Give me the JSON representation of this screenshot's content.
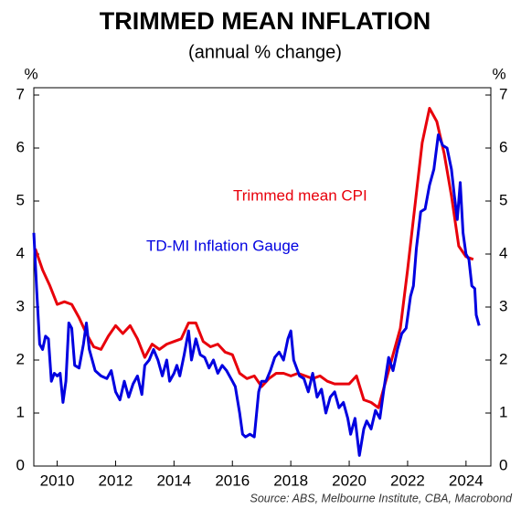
{
  "chart_data": {
    "type": "line",
    "title": "TRIMMED MEAN INFLATION",
    "subtitle": "(annual % change)",
    "y_unit": "%",
    "y2_unit": "%",
    "source": "Source: ABS, Melbourne Institute, CBA, Macrobond",
    "annotations": [
      "Trimmed mean CPI",
      "TD-MI Inflation Gauge"
    ],
    "xlim": [
      2009.2,
      2024.85
    ],
    "xticks": [
      2010,
      2012,
      2014,
      2016,
      2018,
      2020,
      2022,
      2024
    ],
    "ylim": [
      0,
      7
    ],
    "yticks": [
      0,
      1,
      2,
      3,
      4,
      5,
      6,
      7
    ],
    "y2lim": [
      0,
      7
    ],
    "y2ticks": [
      0,
      1,
      2,
      3,
      4,
      5,
      6,
      7
    ],
    "grid": false,
    "series": [
      {
        "name": "Trimmed mean CPI",
        "color": "#e8000b",
        "x": [
          2009.25,
          2009.5,
          2009.75,
          2010,
          2010.25,
          2010.5,
          2010.75,
          2011,
          2011.25,
          2011.5,
          2011.75,
          2012,
          2012.25,
          2012.5,
          2012.75,
          2013,
          2013.25,
          2013.5,
          2013.75,
          2014,
          2014.25,
          2014.5,
          2014.75,
          2015,
          2015.25,
          2015.5,
          2015.75,
          2016,
          2016.25,
          2016.5,
          2016.75,
          2017,
          2017.25,
          2017.5,
          2017.75,
          2018,
          2018.25,
          2018.5,
          2018.75,
          2019,
          2019.25,
          2019.5,
          2019.75,
          2020,
          2020.25,
          2020.5,
          2020.75,
          2021,
          2021.25,
          2021.5,
          2021.75,
          2022,
          2022.25,
          2022.5,
          2022.75,
          2023,
          2023.25,
          2023.5,
          2023.75,
          2024,
          2024.25
        ],
        "values": [
          4.1,
          3.7,
          3.4,
          3.05,
          3.1,
          3.05,
          2.8,
          2.5,
          2.25,
          2.2,
          2.45,
          2.65,
          2.5,
          2.65,
          2.4,
          2.05,
          2.3,
          2.2,
          2.3,
          2.35,
          2.4,
          2.7,
          2.7,
          2.35,
          2.25,
          2.3,
          2.15,
          2.1,
          1.75,
          1.65,
          1.7,
          1.5,
          1.65,
          1.75,
          1.75,
          1.7,
          1.75,
          1.7,
          1.65,
          1.7,
          1.6,
          1.55,
          1.55,
          1.55,
          1.7,
          1.25,
          1.2,
          1.1,
          1.6,
          2.1,
          2.6,
          3.7,
          4.9,
          6.1,
          6.75,
          6.5,
          5.9,
          5.1,
          4.15,
          3.95,
          3.9
        ]
      },
      {
        "name": "TD-MI Inflation Gauge",
        "color": "#0000e0",
        "x": [
          2009.2,
          2009.3,
          2009.4,
          2009.5,
          2009.6,
          2009.7,
          2009.8,
          2009.9,
          2010,
          2010.1,
          2010.2,
          2010.3,
          2010.4,
          2010.5,
          2010.6,
          2010.75,
          2010.9,
          2011,
          2011.1,
          2011.3,
          2011.5,
          2011.7,
          2011.85,
          2012,
          2012.15,
          2012.3,
          2012.45,
          2012.6,
          2012.75,
          2012.9,
          2013,
          2013.15,
          2013.3,
          2013.45,
          2013.6,
          2013.75,
          2013.85,
          2014,
          2014.1,
          2014.2,
          2014.35,
          2014.5,
          2014.6,
          2014.75,
          2014.9,
          2015.05,
          2015.2,
          2015.35,
          2015.5,
          2015.65,
          2015.8,
          2016,
          2016.1,
          2016.25,
          2016.35,
          2016.45,
          2016.6,
          2016.75,
          2016.9,
          2017,
          2017.15,
          2017.3,
          2017.45,
          2017.6,
          2017.75,
          2017.9,
          2018,
          2018.1,
          2018.3,
          2018.45,
          2018.6,
          2018.75,
          2018.9,
          2019.05,
          2019.2,
          2019.35,
          2019.5,
          2019.65,
          2019.8,
          2019.95,
          2020.05,
          2020.2,
          2020.35,
          2020.5,
          2020.6,
          2020.75,
          2020.9,
          2021.05,
          2021.2,
          2021.35,
          2021.5,
          2021.65,
          2021.8,
          2021.95,
          2022.1,
          2022.2,
          2022.3,
          2022.45,
          2022.6,
          2022.75,
          2022.9,
          2023.05,
          2023.2,
          2023.35,
          2023.5,
          2023.6,
          2023.7,
          2023.8,
          2023.9,
          2024,
          2024.1,
          2024.2,
          2024.3,
          2024.35,
          2024.45
        ],
        "values": [
          4.4,
          3.3,
          2.3,
          2.2,
          2.45,
          2.4,
          1.6,
          1.75,
          1.7,
          1.75,
          1.2,
          1.6,
          2.7,
          2.6,
          1.9,
          1.85,
          2.3,
          2.7,
          2.2,
          1.8,
          1.7,
          1.65,
          1.8,
          1.4,
          1.25,
          1.6,
          1.3,
          1.55,
          1.7,
          1.35,
          1.9,
          2.0,
          2.2,
          2.0,
          1.7,
          2.0,
          1.6,
          1.75,
          1.9,
          1.7,
          2.1,
          2.55,
          2.0,
          2.4,
          2.1,
          2.05,
          1.85,
          2.0,
          1.75,
          1.9,
          1.8,
          1.6,
          1.5,
          1.0,
          0.6,
          0.55,
          0.6,
          0.55,
          1.4,
          1.6,
          1.6,
          1.8,
          2.05,
          2.15,
          2.0,
          2.4,
          2.55,
          2.0,
          1.7,
          1.65,
          1.4,
          1.75,
          1.3,
          1.45,
          1.0,
          1.3,
          1.4,
          1.1,
          1.2,
          0.9,
          0.6,
          0.9,
          0.2,
          0.7,
          0.85,
          0.7,
          1.05,
          0.9,
          1.5,
          2.05,
          1.8,
          2.2,
          2.5,
          2.6,
          3.2,
          3.4,
          4.1,
          4.8,
          4.85,
          5.3,
          5.6,
          6.25,
          6.05,
          6.0,
          5.6,
          5.1,
          4.65,
          5.35,
          4.4,
          4.0,
          3.9,
          3.4,
          3.35,
          2.85,
          2.65
        ]
      }
    ]
  }
}
